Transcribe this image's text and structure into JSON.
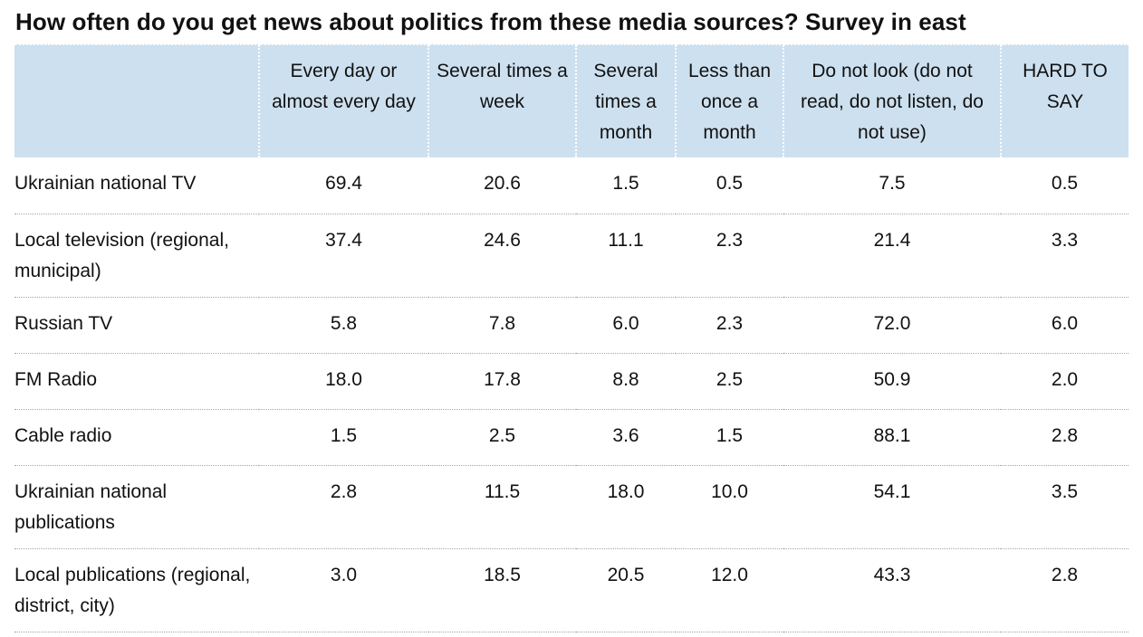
{
  "title": "How often do you get news about politics from these media sources? Survey in east",
  "colors": {
    "header_background": "#cde0ef",
    "row_divider": "#a6a6a6",
    "text": "#111111"
  },
  "chart_data": {
    "type": "table",
    "title": "How often do you get news about politics from these media sources? Survey in east",
    "columns": [
      "",
      "Every day or almost every day",
      "Several times a week",
      "Several times a month",
      "Less than once a month",
      "Do not look (do not read, do not listen, do not use)",
      "HARD TO SAY"
    ],
    "rows": [
      {
        "label": "Ukrainian national TV",
        "values": [
          "69.4",
          "20.6",
          "1.5",
          "0.5",
          "7.5",
          "0.5"
        ]
      },
      {
        "label": "Local television (regional, municipal)",
        "values": [
          "37.4",
          "24.6",
          "11.1",
          "2.3",
          "21.4",
          "3.3"
        ]
      },
      {
        "label": "Russian TV",
        "values": [
          "5.8",
          "7.8",
          "6.0",
          "2.3",
          "72.0",
          "6.0"
        ]
      },
      {
        "label": "FM Radio",
        "values": [
          "18.0",
          "17.8",
          "8.8",
          "2.5",
          "50.9",
          "2.0"
        ]
      },
      {
        "label": "Cable radio",
        "values": [
          "1.5",
          "2.5",
          "3.6",
          "1.5",
          "88.1",
          "2.8"
        ]
      },
      {
        "label": "Ukrainian national publications",
        "values": [
          "2.8",
          "11.5",
          "18.0",
          "10.0",
          "54.1",
          "3.5"
        ]
      },
      {
        "label": "Local publications (regional, district, city)",
        "values": [
          "3.0",
          "18.5",
          "20.5",
          "12.0",
          "43.3",
          "2.8"
        ]
      }
    ]
  }
}
